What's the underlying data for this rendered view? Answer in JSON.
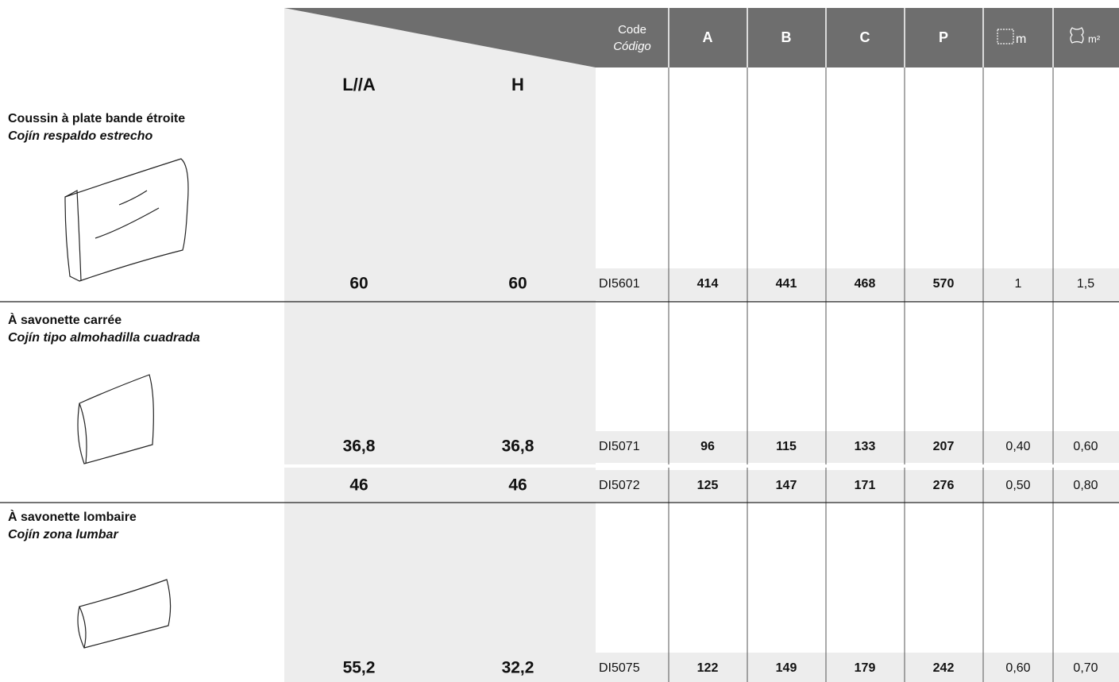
{
  "header": {
    "code": "Code",
    "code_es": "Código",
    "columns": [
      "A",
      "B",
      "C",
      "P"
    ],
    "fabric_unit": "m",
    "leather_unit": "m²",
    "width": "L//A",
    "height": "H"
  },
  "sections": [
    {
      "title": "Coussin à plate bande étroite",
      "title_es": "Cojín respaldo estrecho",
      "rows": [
        [
          "60",
          "60",
          "DI5601",
          "414",
          "441",
          "468",
          "570",
          "1",
          "1,5"
        ]
      ]
    },
    {
      "title": "À savonette carrée",
      "title_es": "Cojín tipo almohadilla cuadrada",
      "rows": [
        [
          "36,8",
          "36,8",
          "DI5071",
          "96",
          "115",
          "133",
          "207",
          "0,40",
          "0,60"
        ],
        [
          "46",
          "46",
          "DI5072",
          "125",
          "147",
          "171",
          "276",
          "0,50",
          "0,80"
        ]
      ]
    },
    {
      "title": "À savonette lombaire",
      "title_es": "Cojín zona lumbar",
      "rows": [
        [
          "55,2",
          "32,2",
          "DI5075",
          "122",
          "149",
          "179",
          "242",
          "0,60",
          "0,70"
        ]
      ]
    }
  ]
}
